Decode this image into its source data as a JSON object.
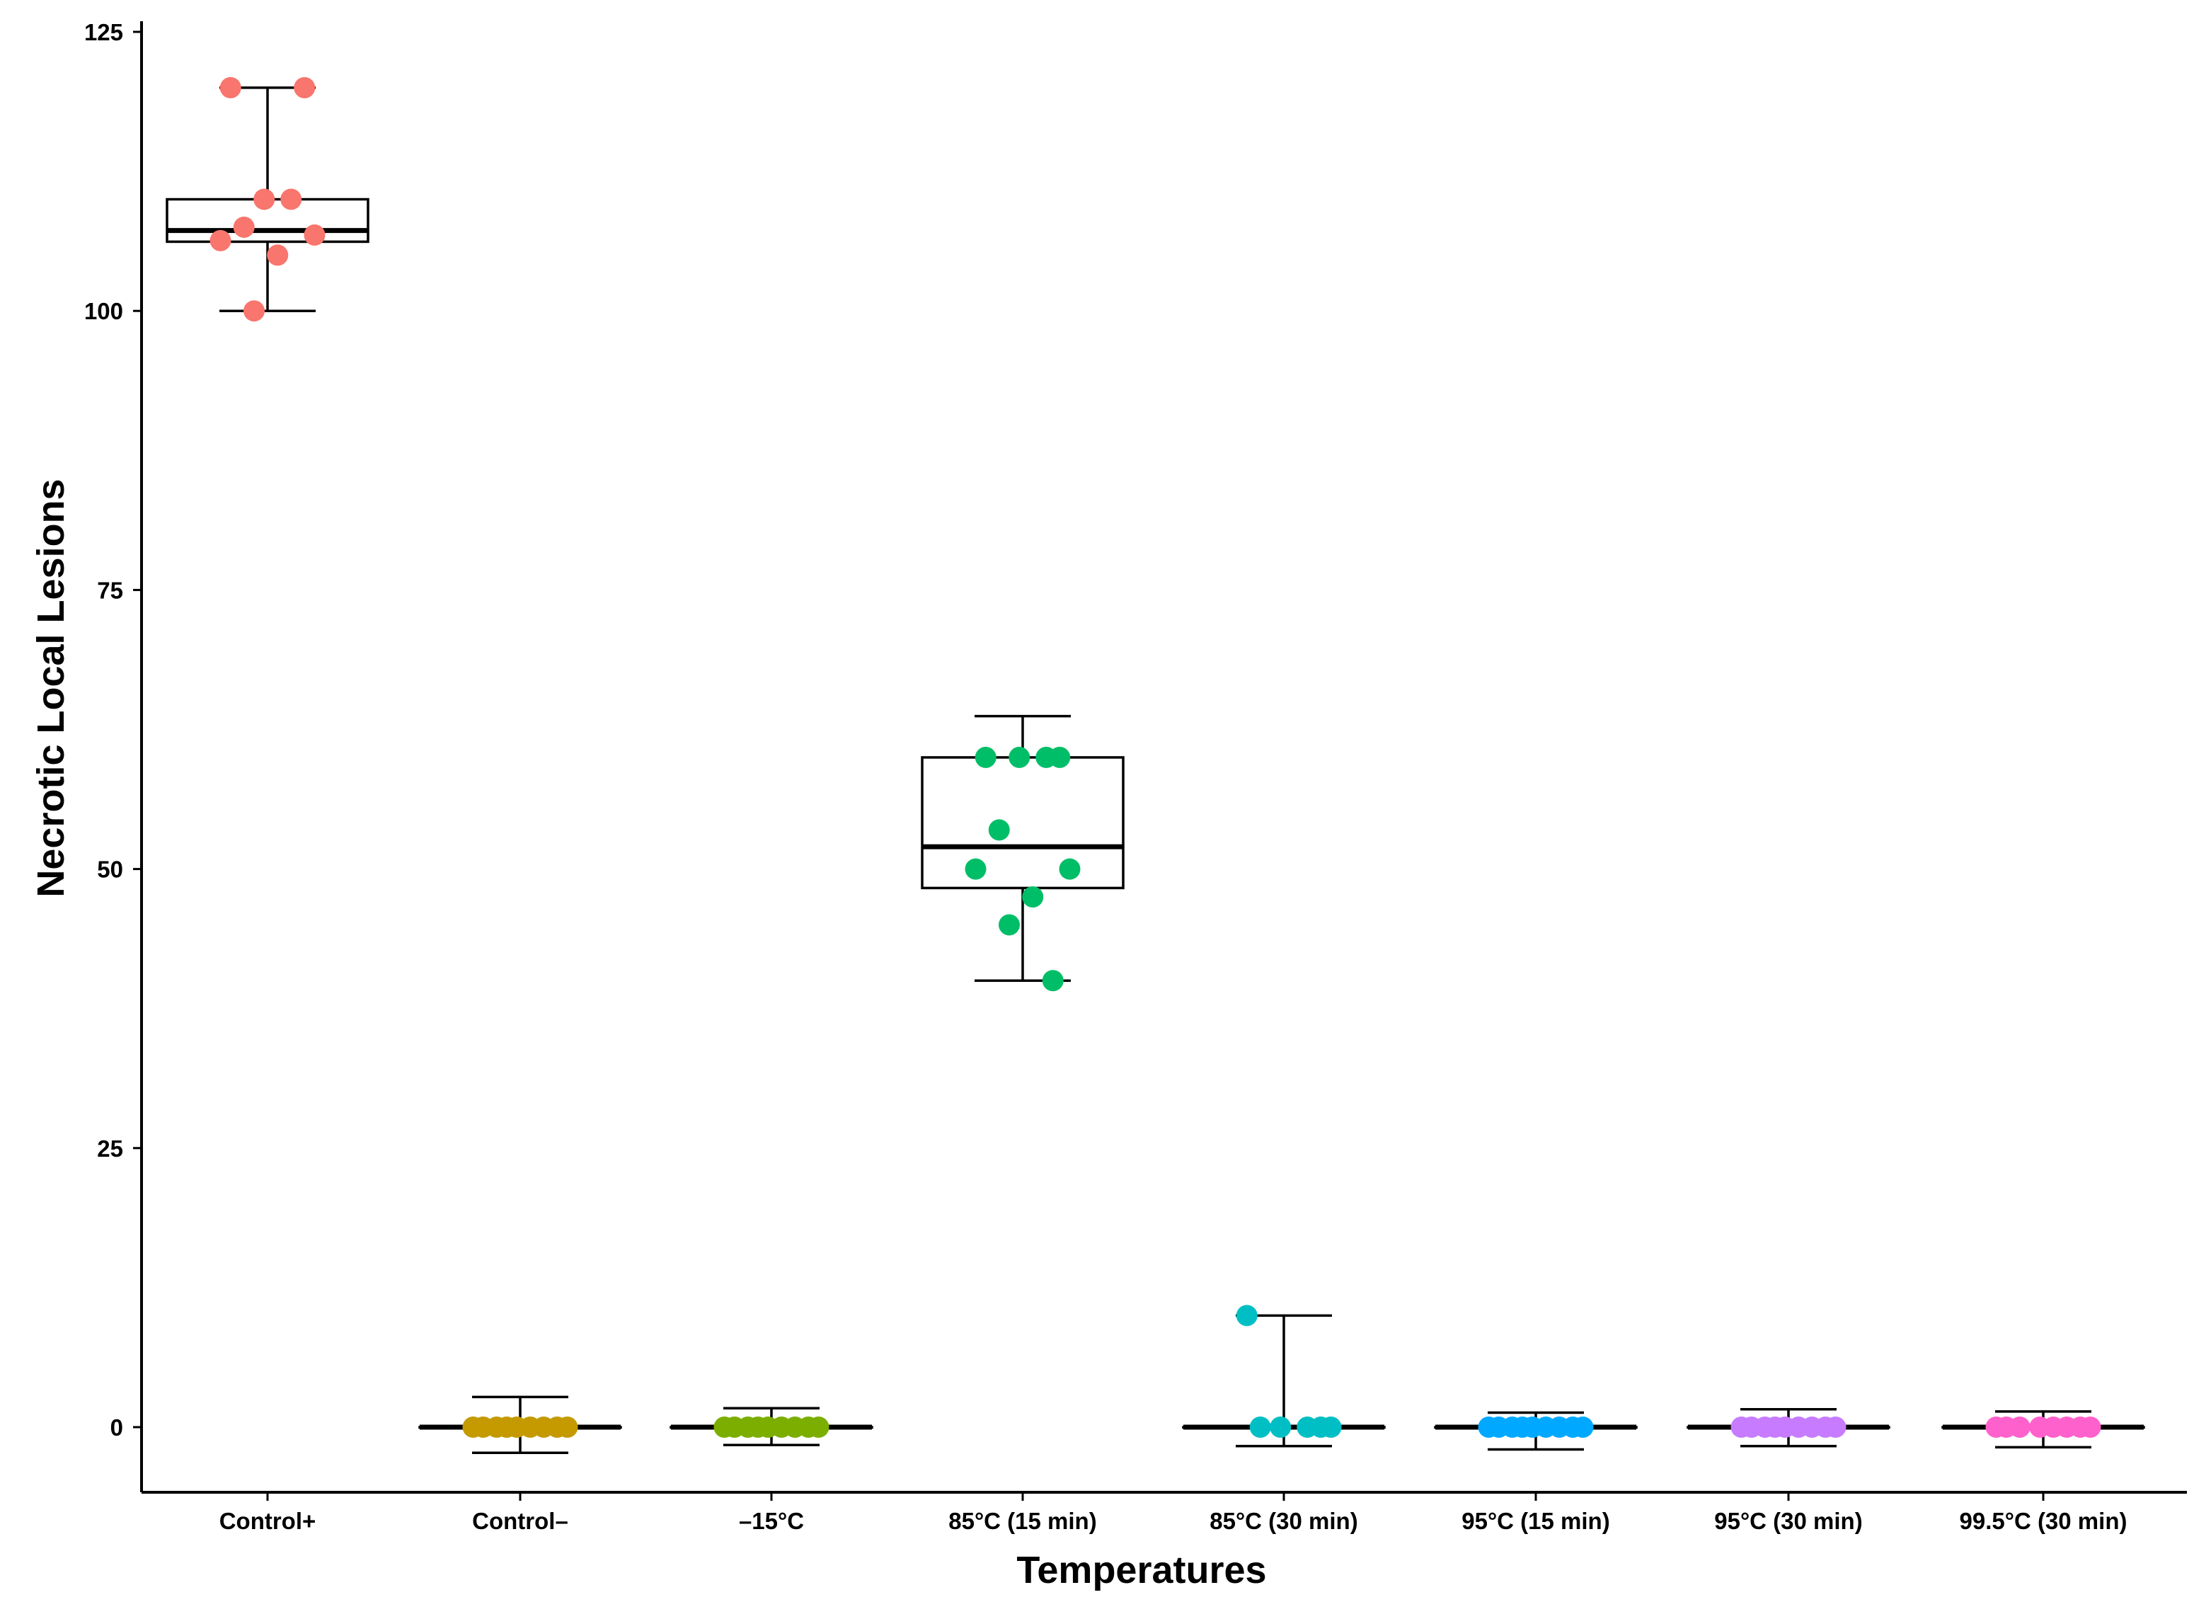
{
  "chart_data": {
    "type": "boxplot-with-jitter",
    "title": "",
    "xlabel": "Temperatures",
    "ylabel": "Necrotic Local Lesions",
    "ylim": [
      -6,
      130
    ],
    "yticks": [
      0,
      25,
      50,
      75,
      100,
      125
    ],
    "grid": false,
    "legend": "none",
    "groups": [
      {
        "name": "Control+",
        "color": "#f8766d",
        "box": {
          "whisker_low": 100,
          "q1": 106.2,
          "median": 107.2,
          "q3": 110,
          "whisker_high": 120
        },
        "points": [
          120,
          120,
          110,
          110,
          107.5,
          106.8,
          106.3,
          105,
          100
        ]
      },
      {
        "name": "Control–",
        "color": "#c49a00",
        "box": {
          "whisker_low": -2.3,
          "q1": 0,
          "median": 0,
          "q3": 0,
          "whisker_high": 2.7
        },
        "points": [
          0,
          0,
          0,
          0,
          0,
          0,
          0,
          0,
          0
        ]
      },
      {
        "name": "–15°C",
        "color": "#7cae00",
        "box": {
          "whisker_low": -1.6,
          "q1": 0,
          "median": 0,
          "q3": 0,
          "whisker_high": 1.7
        },
        "points": [
          0,
          0,
          0,
          0,
          0,
          0,
          0,
          0,
          0
        ]
      },
      {
        "name": "85°C (15 min)",
        "color": "#00be67",
        "box": {
          "whisker_low": 40,
          "q1": 48.3,
          "median": 52,
          "q3": 60,
          "whisker_high": 63.7
        },
        "points": [
          60,
          60,
          60,
          60,
          53.5,
          50,
          50,
          47.5,
          45,
          40
        ]
      },
      {
        "name": "85°C (30 min)",
        "color": "#00bfc4",
        "box": {
          "whisker_low": -1.7,
          "q1": 0,
          "median": 0,
          "q3": 0,
          "whisker_high": 10
        },
        "points": [
          10,
          0,
          0,
          0,
          0,
          0
        ]
      },
      {
        "name": "95°C (15 min)",
        "color": "#00a9ff",
        "box": {
          "whisker_low": -2,
          "q1": 0,
          "median": 0,
          "q3": 0,
          "whisker_high": 1.3
        },
        "points": [
          0,
          0,
          0,
          0,
          0,
          0,
          0,
          0,
          0
        ]
      },
      {
        "name": "95°C (30 min)",
        "color": "#c77cff",
        "box": {
          "whisker_low": -1.7,
          "q1": 0,
          "median": 0,
          "q3": 0,
          "whisker_high": 1.6
        },
        "points": [
          0,
          0,
          0,
          0,
          0,
          0,
          0,
          0,
          0
        ]
      },
      {
        "name": "99.5°C (30 min)",
        "color": "#ff61cc",
        "box": {
          "whisker_low": -1.8,
          "q1": 0,
          "median": 0,
          "q3": 0,
          "whisker_high": 1.4
        },
        "points": [
          0,
          0,
          0,
          0,
          0,
          0,
          0,
          0
        ]
      }
    ]
  }
}
